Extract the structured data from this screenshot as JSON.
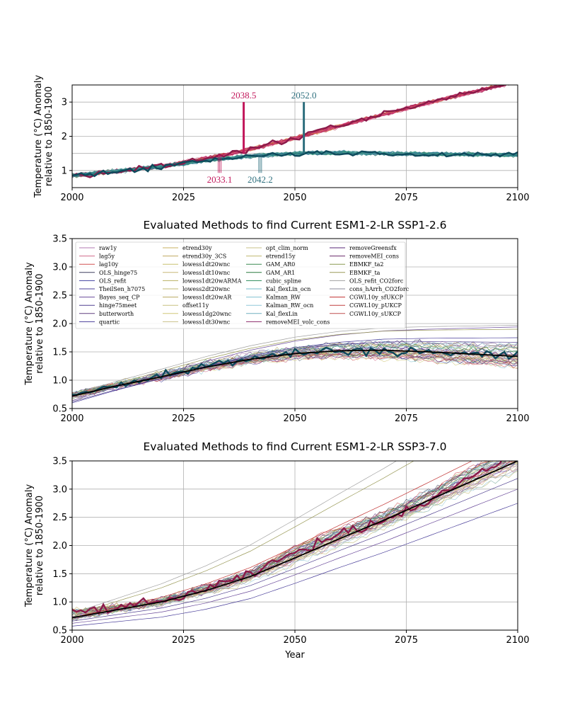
{
  "figure": {
    "background": "#ffffff"
  },
  "chart_data": [
    {
      "type": "line",
      "title": "",
      "xlabel": "",
      "ylabel": "Temperature (°C) Anomaly\nrelative to 1850-1900",
      "xlim": [
        2000,
        2100
      ],
      "ylim": [
        0.5,
        3.5
      ],
      "xticks": [
        "2000",
        "2025",
        "2050",
        "2075",
        "2100"
      ],
      "yticks": [
        "1",
        "2",
        "3"
      ],
      "grid": true,
      "series": [
        {
          "name": "",
          "color": "#8b1a4a",
          "x": [
            2000,
            2010,
            2020,
            2030,
            2040,
            2050,
            2060,
            2070,
            2080,
            2090,
            2100
          ],
          "y": [
            0.85,
            0.98,
            1.12,
            1.35,
            1.62,
            1.95,
            2.3,
            2.65,
            2.98,
            3.3,
            3.6
          ]
        },
        {
          "name": "",
          "color": "#0e4a5c",
          "x": [
            2000,
            2010,
            2020,
            2030,
            2040,
            2050,
            2060,
            2070,
            2080,
            2090,
            2100
          ],
          "y": [
            0.85,
            0.98,
            1.12,
            1.3,
            1.42,
            1.5,
            1.52,
            1.5,
            1.48,
            1.47,
            1.45
          ]
        }
      ],
      "annotations": [
        {
          "label": "2038.5",
          "x": 2038.5,
          "color": "#c2185b",
          "position": "above"
        },
        {
          "label": "2052.0",
          "x": 2052.0,
          "color": "#2e6f7e",
          "position": "above"
        },
        {
          "label": "2033.1",
          "x": 2033.1,
          "color": "#c2185b",
          "position": "below"
        },
        {
          "label": "2042.2",
          "x": 2042.2,
          "color": "#2e6f7e",
          "position": "below"
        }
      ]
    },
    {
      "type": "line",
      "title": "Evaluated Methods to find Current ESM1-2-LR SSP1-2.6",
      "xlabel": "",
      "ylabel": "Temperature (°C) Anomaly\nrelative to 1850-1900",
      "xlim": [
        2000,
        2100
      ],
      "ylim": [
        0.5,
        3.5
      ],
      "xticks": [
        "2000",
        "2025",
        "2050",
        "2075",
        "2100"
      ],
      "yticks": [
        "0.5",
        "1.0",
        "1.5",
        "2.0",
        "2.5",
        "3.0",
        "3.5"
      ],
      "grid": true,
      "legend_position": "upper-left",
      "legend": [
        "raw1y",
        "lag5y",
        "lag10y",
        "OLS_hinge75",
        "OLS_refit",
        "TheilSen_h7075",
        "Bayes_seq_CP",
        "hinge75meet",
        "butterworth",
        "quartic",
        "etrend30y",
        "etrend30y_3CS",
        "lowess1dt20wnc",
        "lowess1dt10wnc",
        "lowess1dt20wARMA",
        "lowess2dt20wnc",
        "lowess1dt20wAR",
        "offset11y",
        "lowess1dg20wnc",
        "lowess1dt30wnc",
        "opt_clim_norm",
        "etrend15y",
        "GAM_AR0",
        "GAM_AR1",
        "cubic_spline",
        "Kal_flexLin_ocn",
        "Kalman_RW",
        "Kalman_RW_ocn",
        "Kal_flexLin",
        "removeMEI_volc_cons",
        "removeGreensfx",
        "removeMEI_cons",
        "EBMKF_ta2",
        "EBMKF_ta",
        "OLS_refit_CO2forc",
        "cons_hArrh_CO2forc",
        "CGWL10y_sfUKCP",
        "CGWL10y_pUKCP",
        "CGWL10y_sUKCP"
      ],
      "legend_colors": [
        "#b07ab0",
        "#d06a8a",
        "#d05050",
        "#404060",
        "#4040a0",
        "#4a3f9a",
        "#6a4a9a",
        "#504090",
        "#604080",
        "#4a3f9a",
        "#c8b060",
        "#c0a860",
        "#c8c070",
        "#c8b878",
        "#b8b060",
        "#c0b870",
        "#b8a860",
        "#c8c080",
        "#d0c878",
        "#c8c088",
        "#c8c088",
        "#c0b870",
        "#3a8a50",
        "#2a7a40",
        "#2a8a5a",
        "#70b8c8",
        "#80c0d0",
        "#90c8d8",
        "#70b0c0",
        "#8b2a6a",
        "#5a2a7a",
        "#6a2a6a",
        "#8a9a50",
        "#9a9a58",
        "#a0a0a0",
        "#8a8a9a",
        "#c03030",
        "#c04040",
        "#c05050"
      ],
      "series": [
        {
          "name": "",
          "color": "#0e4a5c",
          "x": [
            2000,
            2010,
            2020,
            2030,
            2040,
            2050,
            2060,
            2070,
            2080,
            2090,
            2100
          ],
          "y": [
            0.75,
            0.92,
            1.08,
            1.25,
            1.38,
            1.48,
            1.52,
            1.52,
            1.5,
            1.46,
            1.42
          ]
        },
        {
          "name": "",
          "color": "#000000",
          "x": [
            2000,
            2010,
            2020,
            2030,
            2040,
            2050,
            2060,
            2070,
            2080,
            2090,
            2100
          ],
          "y": [
            0.72,
            0.9,
            1.06,
            1.23,
            1.37,
            1.47,
            1.52,
            1.53,
            1.5,
            1.46,
            1.42
          ]
        }
      ]
    },
    {
      "type": "line",
      "title": "Evaluated Methods to find Current ESM1-2-LR SSP3-7.0",
      "xlabel": "Year",
      "ylabel": "Temperature (°C) Anomaly\nrelative to 1850-1900",
      "xlim": [
        2000,
        2100
      ],
      "ylim": [
        0.5,
        3.5
      ],
      "xticks": [
        "2000",
        "2025",
        "2050",
        "2075",
        "2100"
      ],
      "yticks": [
        "0.5",
        "1.0",
        "1.5",
        "2.0",
        "2.5",
        "3.0",
        "3.5"
      ],
      "grid": true,
      "series": [
        {
          "name": "",
          "color": "#8b1a4a",
          "x": [
            2000,
            2010,
            2020,
            2030,
            2040,
            2050,
            2060,
            2070,
            2080,
            2090,
            2100
          ],
          "y": [
            0.82,
            0.9,
            1.0,
            1.22,
            1.48,
            1.88,
            2.2,
            2.45,
            2.8,
            3.25,
            3.6
          ]
        },
        {
          "name": "",
          "color": "#000000",
          "x": [
            2000,
            2010,
            2020,
            2030,
            2040,
            2050,
            2060,
            2070,
            2080,
            2090,
            2100
          ],
          "y": [
            0.72,
            0.86,
            1.0,
            1.2,
            1.45,
            1.78,
            2.12,
            2.45,
            2.8,
            3.15,
            3.5
          ]
        }
      ]
    }
  ]
}
